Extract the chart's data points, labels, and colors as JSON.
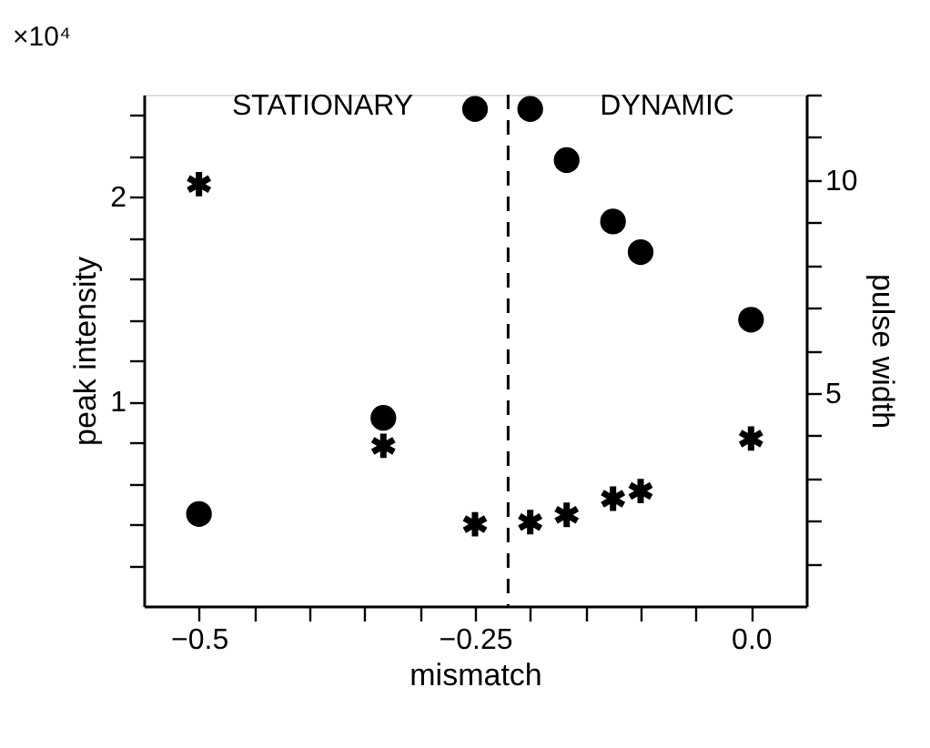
{
  "chart_data": {
    "type": "scatter",
    "xlabel": "mismatch",
    "ylabel": "peak intensity",
    "y2label": "pulse width",
    "x": [
      -0.5,
      -0.333,
      -0.25,
      -0.2,
      -0.167,
      -0.125,
      -0.1,
      0.0
    ],
    "series": [
      {
        "color": "#000000",
        "marker": "circle",
        "values": [
          0.45,
          0.92,
          2.43,
          2.43,
          2.18,
          1.88,
          1.73,
          1.4
        ]
      },
      {
        "color": "#000000",
        "marker": "cross",
        "axis": "y2",
        "values": [
          9.9,
          3.76,
          1.92,
          1.97,
          2.14,
          2.52,
          2.7,
          3.93
        ]
      }
    ],
    "xlim": [
      -0.55,
      0.05
    ],
    "xticks": [
      {
        "value": -0.5,
        "label": "−0.5"
      },
      {
        "value": -0.45,
        "label": null
      },
      {
        "value": -0.4,
        "label": null
      },
      {
        "value": -0.35,
        "label": null
      },
      {
        "value": -0.3,
        "label": null
      },
      {
        "value": -0.25,
        "label": "−0.25"
      },
      {
        "value": -0.2,
        "label": null
      },
      {
        "value": -0.15,
        "label": null
      },
      {
        "value": -0.1,
        "label": null
      },
      {
        "value": -0.05,
        "label": null
      },
      {
        "value": 0.0,
        "label": "0.0"
      }
    ],
    "ylim": [
      0,
      2.5
    ],
    "yticks": [
      {
        "value": 0.2,
        "label": null
      },
      {
        "value": 0.4,
        "label": null
      },
      {
        "value": 0.6,
        "label": null
      },
      {
        "value": 0.8,
        "label": null
      },
      1,
      {
        "value": 1.2,
        "label": null
      },
      {
        "value": 1.4,
        "label": null
      },
      {
        "value": 1.6,
        "label": null
      },
      {
        "value": 1.8,
        "label": null
      },
      2,
      {
        "value": 2.2,
        "label": null
      },
      {
        "value": 2.4,
        "label": null
      }
    ],
    "y2lim": [
      0,
      12
    ],
    "y2ticks": [
      {
        "value": 1,
        "label": null
      },
      {
        "value": 2,
        "label": null
      },
      {
        "value": 3,
        "label": null
      },
      {
        "value": 4,
        "label": null
      },
      5,
      {
        "value": 6,
        "label": null
      },
      {
        "value": 7,
        "label": null
      },
      {
        "value": 8,
        "label": null
      },
      {
        "value": 9,
        "label": null
      },
      10,
      {
        "value": 11,
        "label": null
      },
      {
        "value": 12,
        "label": null
      }
    ],
    "ref_lines": [
      {
        "axis": "x",
        "value": -0.22,
        "color": "#000000",
        "line_style": "dashed"
      }
    ],
    "annotations": [
      "×10⁴",
      "STATIONARY",
      "DYNAMIC"
    ],
    "grid": false
  }
}
